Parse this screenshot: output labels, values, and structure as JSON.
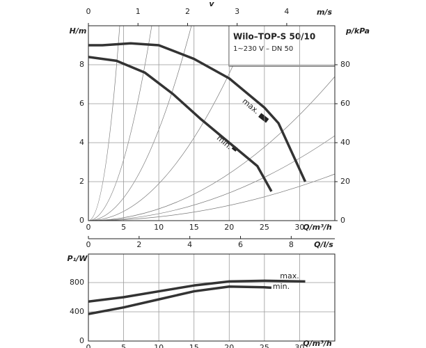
{
  "chart_data": [
    {
      "type": "line",
      "title": "Wilo–TOP-S 50/10",
      "subtitle": "1~230 V – DN 50",
      "x_label": "Q/m³/h",
      "y_label": "H/m",
      "y2_label": "p/kPa",
      "x2_label": "v",
      "x2_unit": "m/s",
      "xlim": [
        0,
        35
      ],
      "xticks": [
        0,
        5,
        10,
        15,
        20,
        25,
        30
      ],
      "ylim": [
        0,
        10
      ],
      "yticks": [
        0,
        2,
        4,
        6,
        8
      ],
      "y2lim": [
        0,
        100
      ],
      "y2ticks": [
        0,
        20,
        40,
        60,
        80
      ],
      "x2lim": [
        0,
        4.97
      ],
      "x2ticks": [
        0,
        1,
        2,
        3,
        4
      ],
      "grid": true,
      "series": [
        {
          "name": "max.",
          "color": "#333333",
          "x": [
            0,
            2,
            6,
            10,
            15,
            20,
            25,
            27,
            30.8
          ],
          "values": [
            9.0,
            9.0,
            9.1,
            9.0,
            8.3,
            7.3,
            5.8,
            5.0,
            2.0
          ]
        },
        {
          "name": "min.",
          "color": "#333333",
          "x": [
            0,
            4,
            8,
            12,
            16,
            20,
            24,
            26
          ],
          "values": [
            8.4,
            8.2,
            7.6,
            6.5,
            5.2,
            4.0,
            2.8,
            1.5
          ]
        }
      ]
    },
    {
      "type": "line",
      "x_label": "Q/m³/h",
      "y_label": "P₁/W",
      "x2_label": "Q/l/s",
      "xlim": [
        0,
        35
      ],
      "xticks": [
        0,
        5,
        10,
        15,
        20,
        25,
        30
      ],
      "ylim": [
        0,
        1190
      ],
      "yticks": [
        0,
        400,
        800
      ],
      "x2lim": [
        0,
        9.72
      ],
      "x2ticks": [
        0,
        2,
        4,
        6,
        8
      ],
      "grid": true,
      "series": [
        {
          "name": "max.",
          "color": "#333333",
          "x": [
            0,
            5,
            10,
            15,
            20,
            25,
            30.8
          ],
          "values": [
            540,
            600,
            680,
            760,
            815,
            825,
            815
          ]
        },
        {
          "name": "min.",
          "color": "#333333",
          "x": [
            0,
            5,
            10,
            15,
            20,
            25,
            26
          ],
          "values": [
            370,
            460,
            570,
            680,
            745,
            735,
            730
          ]
        }
      ]
    }
  ]
}
